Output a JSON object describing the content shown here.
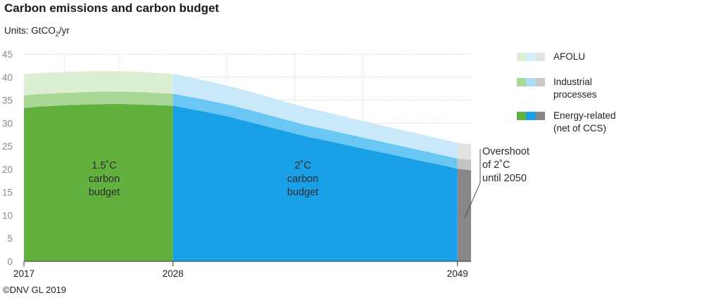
{
  "title": "Carbon emissions and carbon budget",
  "units": {
    "prefix": "Units: GtCO",
    "sub": "2",
    "suffix": "/yr"
  },
  "credit": "©DNV GL 2019",
  "legend": [
    {
      "label": "AFOLU",
      "colors": [
        "#dcefd2",
        "#d4eefb",
        "#e4e4e4"
      ]
    },
    {
      "label": "Industrial\nprocesses",
      "colors": [
        "#a9d796",
        "#aadcf6",
        "#c9c9c9"
      ]
    },
    {
      "label": "Energy-related\n(net of CCS)",
      "colors": [
        "#62b13f",
        "#1aa0e6",
        "#878787"
      ]
    }
  ],
  "annotations": {
    "budget_1_5": "1.5˚C\ncarbon\nbudget",
    "budget_2": "2˚C\ncarbon\nbudget",
    "overshoot": "Overshoot\nof 2˚C\nuntil 2050"
  },
  "colors": {
    "green_dark": "#62b13f",
    "green_mid": "#a9d796",
    "green_light": "#dcefd2",
    "blue_dark": "#1aa0e6",
    "blue_mid": "#6ac6f2",
    "blue_light": "#c9e8fa",
    "grey_dark": "#878787",
    "grey_mid": "#c4c4c4",
    "grey_light": "#e2e2e2"
  },
  "chart_data": {
    "type": "area",
    "stacked": true,
    "title": "Carbon emissions and carbon budget",
    "ylabel": "Units: GtCO2/yr",
    "ylim": [
      0,
      45
    ],
    "yticks": [
      0,
      5,
      10,
      15,
      20,
      25,
      30,
      35,
      40,
      45
    ],
    "xlim": [
      2017,
      2050
    ],
    "xticks": [
      2017,
      2028,
      2049
    ],
    "grid": true,
    "x": [
      2017,
      2018,
      2020,
      2022,
      2024,
      2026,
      2028,
      2030,
      2032,
      2034,
      2036,
      2038,
      2040,
      2042,
      2044,
      2046,
      2048,
      2049,
      2050
    ],
    "series": [
      {
        "name": "Energy-related (net of CCS)",
        "values": [
          33.3,
          33.6,
          33.9,
          34.1,
          34.2,
          34.0,
          33.8,
          32.7,
          31.5,
          30.0,
          28.5,
          27.0,
          25.8,
          24.5,
          23.3,
          22.0,
          20.8,
          20.1,
          19.8
        ]
      },
      {
        "name": "Industrial processes",
        "values": [
          2.7,
          2.7,
          2.7,
          2.7,
          2.7,
          2.7,
          2.6,
          2.6,
          2.6,
          2.6,
          2.5,
          2.5,
          2.4,
          2.4,
          2.3,
          2.3,
          2.2,
          2.2,
          2.2
        ]
      },
      {
        "name": "AFOLU",
        "values": [
          4.6,
          4.6,
          4.5,
          4.5,
          4.4,
          4.4,
          4.3,
          4.2,
          4.1,
          4.0,
          3.9,
          3.8,
          3.7,
          3.6,
          3.5,
          3.5,
          3.4,
          3.4,
          3.4
        ]
      }
    ],
    "periods": [
      {
        "label": "1.5˚C carbon budget",
        "from": 2017,
        "to": 2028
      },
      {
        "label": "2˚C carbon budget",
        "from": 2028,
        "to": 2049
      },
      {
        "label": "Overshoot of 2˚C until 2050",
        "from": 2049,
        "to": 2050
      }
    ]
  }
}
